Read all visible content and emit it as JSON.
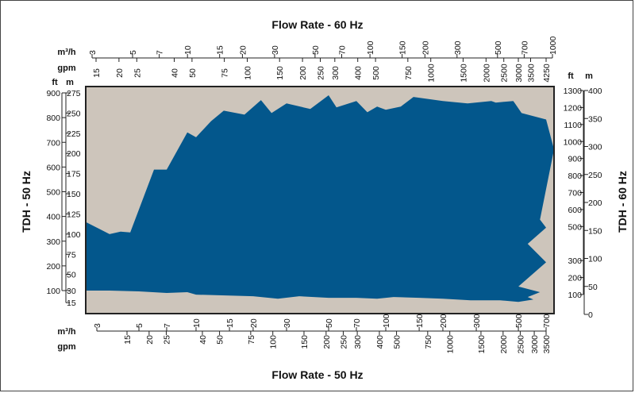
{
  "chart_data": {
    "type": "area",
    "title_top": "Flow Rate - 60 Hz",
    "title_bottom": "Flow Rate - 50 Hz",
    "ylabel_left": "TDH - 50 Hz",
    "ylabel_right": "TDH - 60 Hz",
    "colors": {
      "plot_bg": "#cdc5bb",
      "area": "#03578c",
      "axis": "#222222"
    },
    "x_top_m3h": {
      "unit": "m³/h",
      "ticks": [
        "3",
        "5",
        "7",
        "10",
        "15",
        "20",
        "30",
        "50",
        "70",
        "100",
        "150",
        "200",
        "300",
        "500",
        "700",
        "1000"
      ]
    },
    "x_top_gpm": {
      "unit": "gpm",
      "ticks": [
        "15",
        "20",
        "25",
        "40",
        "50",
        "75",
        "100",
        "150",
        "200",
        "250",
        "300",
        "400",
        "500",
        "750",
        "1000",
        "1500",
        "2000",
        "2500",
        "3000",
        "3500",
        "4250"
      ]
    },
    "x_bottom_m3h": {
      "unit": "m³/h",
      "ticks": [
        "3",
        "5",
        "7",
        "10",
        "15",
        "20",
        "30",
        "50",
        "70",
        "100",
        "150",
        "200",
        "300",
        "500",
        "700"
      ]
    },
    "x_bottom_gpm": {
      "unit": "gpm",
      "ticks": [
        "15",
        "20",
        "25",
        "40",
        "50",
        "75",
        "100",
        "150",
        "200",
        "250",
        "300",
        "400",
        "500",
        "750",
        "1000",
        "1500",
        "2000",
        "2500",
        "3000",
        "3500"
      ]
    },
    "y_left_ft": {
      "unit": "ft",
      "ticks": [
        "100",
        "200",
        "300",
        "400",
        "500",
        "600",
        "700",
        "800",
        "900"
      ]
    },
    "y_left_m": {
      "unit": "m",
      "ticks": [
        "15",
        "30",
        "50",
        "75",
        "100",
        "125",
        "150",
        "175",
        "200",
        "225",
        "250",
        "275"
      ]
    },
    "y_right_ft": {
      "unit": "ft",
      "ticks": [
        "100",
        "200",
        "300",
        "500",
        "600",
        "700",
        "800",
        "900",
        "1000",
        "1100",
        "1200",
        "1300"
      ]
    },
    "y_right_m": {
      "unit": "m",
      "ticks": [
        "0",
        "50",
        "100",
        "150",
        "200",
        "250",
        "300",
        "350",
        "400"
      ]
    },
    "coverage_outline_m3h_vs_m": [
      [
        3.5,
        30
      ],
      [
        5,
        29
      ],
      [
        7,
        27
      ],
      [
        9,
        28
      ],
      [
        10,
        25
      ],
      [
        20,
        23
      ],
      [
        27,
        20
      ],
      [
        35,
        23
      ],
      [
        50,
        21
      ],
      [
        70,
        21
      ],
      [
        90,
        20
      ],
      [
        110,
        22
      ],
      [
        150,
        21
      ],
      [
        200,
        20
      ],
      [
        280,
        18
      ],
      [
        400,
        18
      ],
      [
        500,
        16
      ],
      [
        600,
        19
      ],
      [
        560,
        22
      ],
      [
        650,
        28
      ],
      [
        500,
        35
      ],
      [
        700,
        65
      ],
      [
        560,
        88
      ],
      [
        700,
        108
      ],
      [
        650,
        118
      ],
      [
        950,
        205
      ],
      [
        700,
        242
      ],
      [
        520,
        250
      ],
      [
        480,
        262
      ],
      [
        470,
        265
      ],
      [
        380,
        263
      ],
      [
        360,
        265
      ],
      [
        270,
        262
      ],
      [
        200,
        265
      ],
      [
        140,
        270
      ],
      [
        120,
        258
      ],
      [
        100,
        254
      ],
      [
        90,
        258
      ],
      [
        80,
        251
      ],
      [
        70,
        265
      ],
      [
        55,
        257
      ],
      [
        50,
        272
      ],
      [
        40,
        255
      ],
      [
        30,
        262
      ],
      [
        25,
        250
      ],
      [
        22,
        266
      ],
      [
        18,
        248
      ],
      [
        14,
        253
      ],
      [
        12,
        240
      ],
      [
        10,
        220
      ],
      [
        9,
        226
      ],
      [
        7,
        180
      ],
      [
        6,
        180
      ],
      [
        4.5,
        102
      ],
      [
        4,
        103
      ],
      [
        3.5,
        100
      ],
      [
        2.5,
        115
      ],
      [
        1.6,
        30
      ]
    ]
  }
}
